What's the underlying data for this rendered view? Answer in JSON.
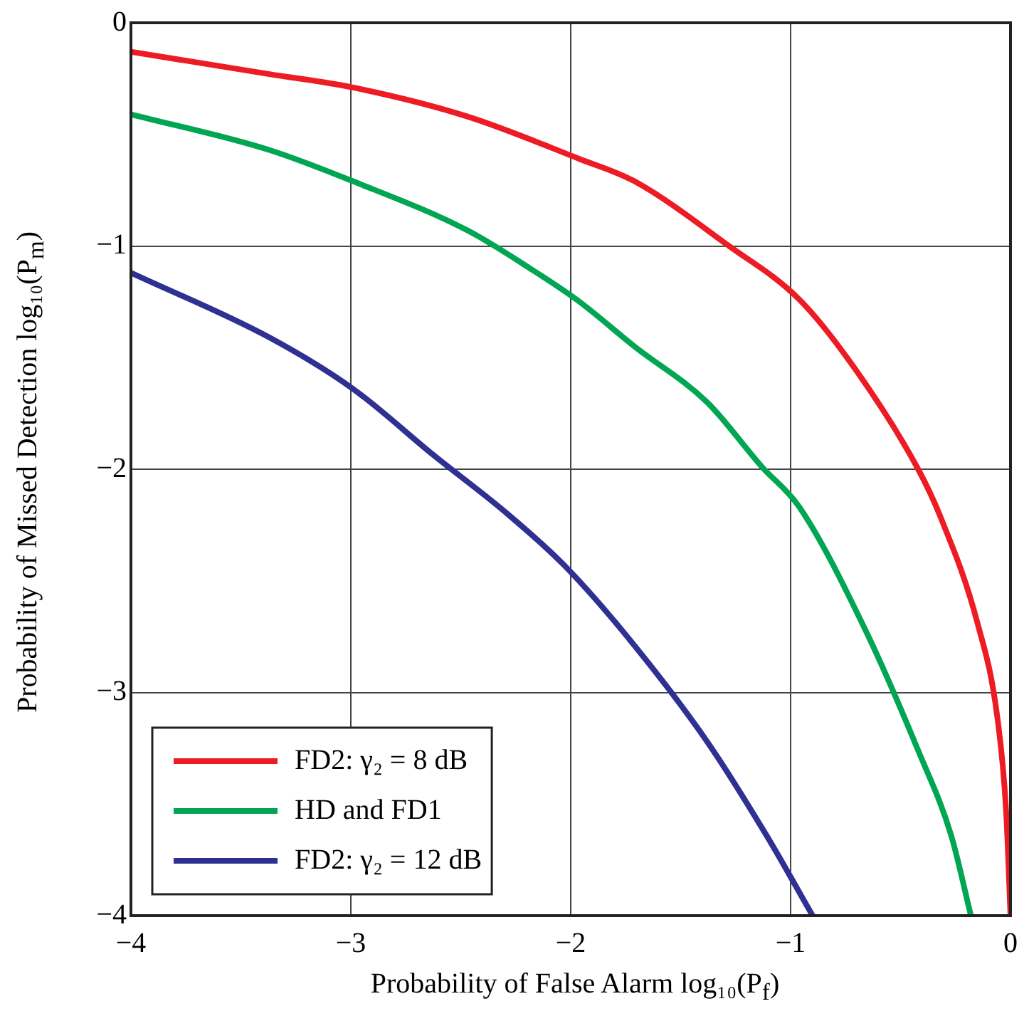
{
  "chart_data": {
    "type": "line",
    "xlabel": "Probability of False Alarm log₁₀(P$_{f}$)",
    "ylabel": "Probability of Missed Detection log₁₀(P$_{m}$)",
    "xlim": [
      -4,
      0
    ],
    "ylim": [
      -4,
      0
    ],
    "xticks": [
      {
        "value": -4,
        "label": "−4"
      },
      {
        "value": -3,
        "label": "−3"
      },
      {
        "value": -2,
        "label": "−2"
      },
      {
        "value": -1,
        "label": "−1"
      },
      0
    ],
    "yticks": [
      {
        "value": -4,
        "label": "−4"
      },
      {
        "value": -3,
        "label": "−3"
      },
      {
        "value": -2,
        "label": "−2"
      },
      {
        "value": -1,
        "label": "−1"
      },
      0
    ],
    "grid": true,
    "legend": "bottom left",
    "marker": "none",
    "line_style": "solid",
    "series": [
      {
        "name": "FD2: γ₂ = 8 dB",
        "color": "#ed1c24",
        "x": [
          -4,
          -3.37,
          -2.99,
          -2.47,
          -1.96,
          -1.71,
          -1.28,
          -0.96,
          -0.7,
          -0.42,
          -0.32,
          -0.15,
          -0.06,
          -0.02,
          0
        ],
        "values": [
          -0.13,
          -0.23,
          -0.29,
          -0.42,
          -0.61,
          -0.71,
          -1.0,
          -1.24,
          -1.56,
          -2.0,
          -2.21,
          -2.69,
          -3.11,
          -3.53,
          -4
        ]
      },
      {
        "name": "HD and FD1",
        "color": "#00a651",
        "x": [
          -4,
          -3.37,
          -2.99,
          -2.47,
          -2.17,
          -1.96,
          -1.71,
          -1.38,
          -1.13,
          -0.96,
          -0.66,
          -0.42,
          -0.27,
          -0.18
        ],
        "values": [
          -0.41,
          -0.57,
          -0.71,
          -0.93,
          -1.11,
          -1.25,
          -1.45,
          -1.7,
          -1.99,
          -2.17,
          -2.72,
          -3.26,
          -3.64,
          -4
        ]
      },
      {
        "name": "FD2: γ₂ = 12 dB",
        "color": "#2e3192",
        "x": [
          -4,
          -3.37,
          -2.99,
          -2.62,
          -2.3,
          -2.03,
          -1.71,
          -1.38,
          -1.11,
          -0.9
        ],
        "values": [
          -1.12,
          -1.41,
          -1.64,
          -1.94,
          -2.19,
          -2.43,
          -2.79,
          -3.22,
          -3.64,
          -4
        ]
      }
    ]
  }
}
